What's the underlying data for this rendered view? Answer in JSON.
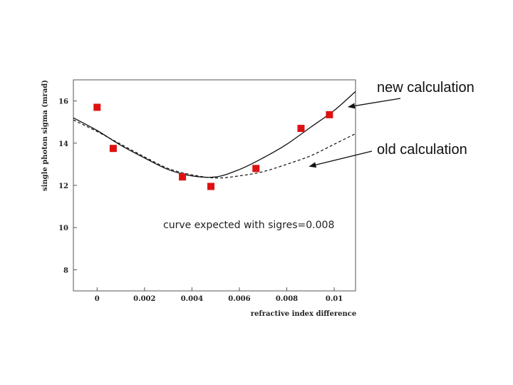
{
  "chart_data": {
    "type": "scatter",
    "xlabel": "refractive index difference",
    "ylabel": "single photon sigma (mrad)",
    "xlim": [
      -0.001,
      0.0109
    ],
    "ylim": [
      7,
      17
    ],
    "x_ticks": [
      0,
      0.002,
      0.004,
      0.006,
      0.008,
      0.01
    ],
    "x_tick_labels": [
      "0",
      "0.002",
      "0.004",
      "0.006",
      "0.008",
      "0.01"
    ],
    "y_ticks": [
      8,
      10,
      12,
      14,
      16
    ],
    "y_tick_labels": [
      "8",
      "10",
      "12",
      "14",
      "16"
    ],
    "annotation": "curve expected with sigres=0.008",
    "points": {
      "x": [
        0.0,
        0.00068,
        0.0036,
        0.0048,
        0.0067,
        0.0086,
        0.0098
      ],
      "y": [
        15.7,
        13.75,
        12.4,
        11.95,
        12.8,
        14.7,
        15.35
      ],
      "color": "#dd1111"
    },
    "curves": [
      {
        "label": "new calculation",
        "style": "solid",
        "x": [
          -0.001,
          0.0,
          0.001,
          0.002,
          0.003,
          0.004,
          0.005,
          0.006,
          0.007,
          0.008,
          0.009,
          0.01,
          0.0109
        ],
        "y": [
          15.2,
          14.6,
          13.9,
          13.3,
          12.75,
          12.45,
          12.4,
          12.75,
          13.3,
          13.95,
          14.75,
          15.55,
          16.45
        ]
      },
      {
        "label": "old calculation",
        "style": "dashed",
        "x": [
          -0.001,
          0.0,
          0.001,
          0.002,
          0.003,
          0.004,
          0.005,
          0.006,
          0.007,
          0.008,
          0.009,
          0.01,
          0.0109
        ],
        "y": [
          15.1,
          14.55,
          13.95,
          13.35,
          12.8,
          12.5,
          12.35,
          12.45,
          12.65,
          13.0,
          13.4,
          13.95,
          14.45
        ]
      }
    ]
  }
}
